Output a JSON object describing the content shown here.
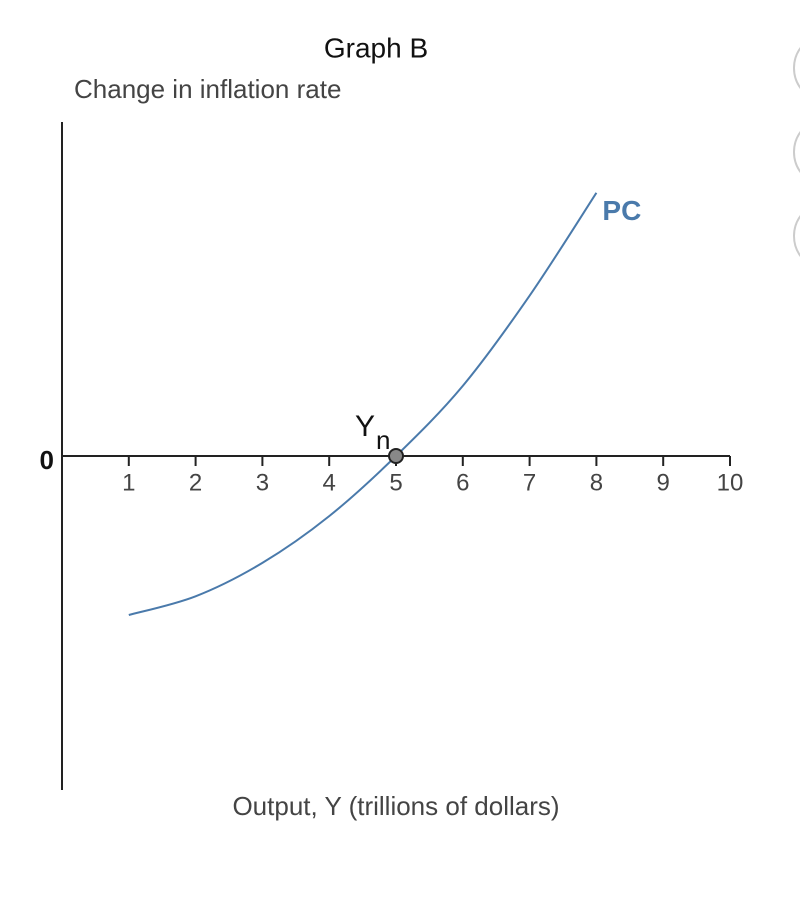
{
  "chart_data": {
    "type": "line",
    "title": "Graph B",
    "y_label": "Change in inflation rate",
    "x_label": "Output, Y (trillions of dollars)",
    "x": [
      1,
      2,
      3,
      4,
      5,
      6,
      7,
      8
    ],
    "series": [
      {
        "name": "PC",
        "color": "#4a7aab",
        "values": [
          -2.38,
          -2.1,
          -1.6,
          -0.9,
          0,
          1.05,
          2.4,
          3.94
        ]
      }
    ],
    "xlim": [
      0,
      10
    ],
    "ylim": [
      -5,
      5
    ],
    "xticks": [
      1,
      2,
      3,
      4,
      5,
      6,
      7,
      8,
      9,
      10
    ],
    "yticks": [
      0
    ],
    "annotations": [
      {
        "text": "Y",
        "subscript": "n",
        "x": 5,
        "y": 0
      }
    ]
  }
}
